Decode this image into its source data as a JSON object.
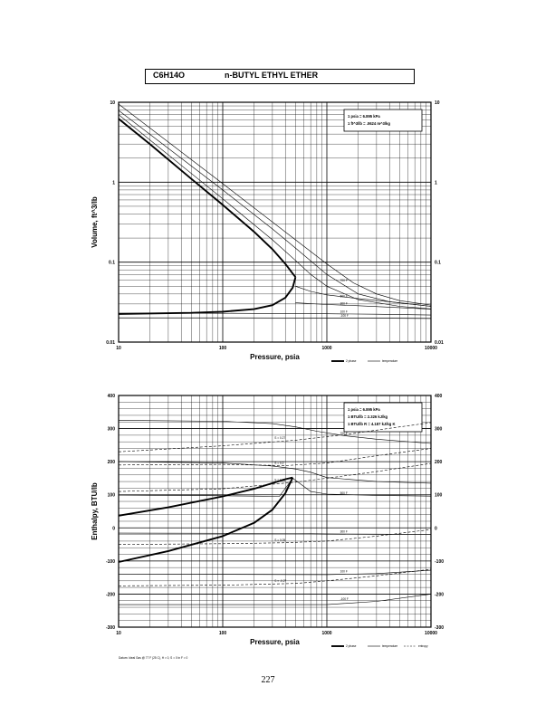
{
  "header": {
    "formula": "C6H14O",
    "compound": "n-BUTYL ETHYL ETHER"
  },
  "page_number": "227",
  "footnote": "Datum: Ideal Gas @ 77 F (25 C), H = 0, S = 0 in F = 0",
  "chart_data": [
    {
      "type": "line",
      "x_scale": "log",
      "y_scale": "log",
      "xlim": [
        10,
        10000
      ],
      "ylim": [
        0.01,
        10
      ],
      "xlabel": "Pressure, psia",
      "ylabel": "Volume, ft^3/lb",
      "x_ticks": [
        "10",
        "100",
        "1000",
        "10000"
      ],
      "y_ticks": [
        "10",
        "1",
        "0.1",
        "0.01"
      ],
      "y_ticks_right": [
        "10",
        "1",
        "0.1",
        "0.01"
      ],
      "grid": true,
      "conversions": [
        "1 psia = 6.895 kPa",
        "1 ft^3/lb = .0624 m^3/kg"
      ],
      "legend": {
        "position": "bottom-right",
        "entries": [
          "2 phase",
          "temperature"
        ]
      },
      "two_phase": {
        "vapor_x": [
          10,
          20,
          50,
          100,
          200,
          300,
          400,
          470,
          500
        ],
        "vapor_y": [
          6.2,
          3.0,
          1.1,
          0.52,
          0.24,
          0.145,
          0.095,
          0.072,
          0.065
        ],
        "liquid_x": [
          10,
          50,
          100,
          200,
          300,
          400,
          470,
          500
        ],
        "liquid_y": [
          0.0225,
          0.0232,
          0.024,
          0.0258,
          0.029,
          0.036,
          0.048,
          0.065
        ]
      },
      "isotherms": [
        {
          "label": "",
          "x": [
            10,
            100,
            300,
            500,
            700,
            1000,
            2000,
            5000,
            10000
          ],
          "y": [
            7.0,
            0.62,
            0.19,
            0.105,
            0.07,
            0.05,
            0.034,
            0.028,
            0.026
          ]
        },
        {
          "label": "",
          "x": [
            10,
            100,
            300,
            500,
            1000,
            2000,
            4000,
            10000
          ],
          "y": [
            7.9,
            0.8,
            0.26,
            0.15,
            0.07,
            0.04,
            0.032,
            0.028
          ]
        },
        {
          "label": "700 F",
          "x": [
            10,
            100,
            500,
            1000,
            1800,
            3000,
            5000,
            10000
          ],
          "y": [
            9.5,
            0.96,
            0.19,
            0.095,
            0.055,
            0.04,
            0.033,
            0.029
          ]
        },
        {
          "label": "500 F",
          "x": [
            500,
            700,
            1000,
            2000,
            5000,
            10000
          ],
          "y": [
            0.05,
            0.043,
            0.039,
            0.035,
            0.031,
            0.028
          ]
        },
        {
          "label": "300 F",
          "x": [
            500,
            1000,
            2000,
            5000,
            10000
          ],
          "y": [
            0.031,
            0.0295,
            0.0285,
            0.027,
            0.0258
          ]
        },
        {
          "label": "100 F",
          "x": [
            10,
            100,
            1000,
            3000,
            10000
          ],
          "y": [
            0.023,
            0.0229,
            0.0226,
            0.0223,
            0.0218
          ]
        },
        {
          "label": "-100 F",
          "x": [
            10,
            100,
            1000,
            3000,
            10000
          ],
          "y": [
            0.0201,
            0.0201,
            0.02,
            0.0199,
            0.0197
          ]
        }
      ]
    },
    {
      "type": "line",
      "x_scale": "log",
      "y_scale": "linear",
      "xlim": [
        10,
        10000
      ],
      "ylim": [
        -300,
        400
      ],
      "xlabel": "Pressure, psia",
      "ylabel": "Enthalpy, BTU/lb",
      "x_ticks": [
        "10",
        "100",
        "1000",
        "10000"
      ],
      "y_ticks": [
        "400",
        "300",
        "200",
        "100",
        "0",
        "-100",
        "-200",
        "-300"
      ],
      "y_ticks_right": [
        "400",
        "300",
        "200",
        "100",
        "0",
        "-100",
        "-200",
        "-300"
      ],
      "grid": true,
      "conversions": [
        "1 psia = 6.895 kPa",
        "1 BTU/lb = 2.326 kJ/kg",
        "1 BTU/lb R = 4.187 kJ/kg K"
      ],
      "legend": {
        "position": "bottom-right",
        "entries": [
          "2 phase",
          "temperature",
          "entropy"
        ]
      },
      "two_phase": {
        "vapor_x": [
          10,
          30,
          100,
          200,
          300,
          400,
          470
        ],
        "vapor_y": [
          37,
          62,
          95,
          118,
          135,
          147,
          152
        ],
        "liquid_x": [
          10,
          30,
          100,
          200,
          300,
          400,
          470
        ],
        "liquid_y": [
          -103,
          -70,
          -25,
          15,
          55,
          105,
          152
        ]
      },
      "isotherms": [
        {
          "label": "700 F",
          "x": [
            10,
            100,
            300,
            500,
            800,
            1500,
            3000,
            10000
          ],
          "y": [
            325,
            322,
            315,
            305,
            292,
            278,
            268,
            255
          ]
        },
        {
          "label": "",
          "x": [
            10,
            100,
            300,
            500,
            700,
            1000,
            3000,
            10000
          ],
          "y": [
            200,
            196,
            187,
            178,
            168,
            152,
            140,
            135
          ]
        },
        {
          "label": "500 F",
          "x": [
            10,
            100,
            200,
            350,
            470,
            700,
            1000,
            3000,
            10000
          ],
          "y": [
            99,
            97,
            96,
            95,
            150,
            110,
            102,
            98,
            96
          ]
        },
        {
          "label": "300 F",
          "x": [
            10,
            500,
            1000,
            3000,
            10000
          ],
          "y": [
            -16,
            -17,
            -18,
            -19,
            -20
          ]
        },
        {
          "label": "100 F",
          "x": [
            10,
            1000,
            3000,
            10000
          ],
          "y": [
            -140,
            -141,
            -138,
            -128
          ]
        },
        {
          "label": "-100 F",
          "x": [
            10,
            1000,
            3000,
            10000
          ],
          "y": [
            -232,
            -232,
            -222,
            -200
          ]
        }
      ],
      "entropy_lines": [
        {
          "label": "S = 0.27",
          "x": [
            10,
            100,
            500,
            1500,
            5000,
            10000
          ],
          "y": [
            230,
            248,
            265,
            282,
            305,
            318
          ]
        },
        {
          "label": "S = 0.2",
          "x": [
            10,
            100,
            400,
            1000,
            3000,
            10000
          ],
          "y": [
            190,
            192,
            188,
            196,
            218,
            240
          ]
        },
        {
          "label": "S = 0.15",
          "x": [
            10,
            100,
            500,
            1000,
            3000,
            10000
          ],
          "y": [
            110,
            118,
            138,
            150,
            170,
            195
          ]
        },
        {
          "label": "S = 0.05",
          "x": [
            10,
            100,
            400,
            1000,
            3000,
            10000
          ],
          "y": [
            -50,
            -48,
            -45,
            -40,
            -25,
            -5
          ]
        },
        {
          "label": "S = -0.27",
          "x": [
            10,
            100,
            500,
            1000,
            3000,
            10000
          ],
          "y": [
            -175,
            -173,
            -168,
            -160,
            -145,
            -125
          ]
        }
      ]
    }
  ]
}
